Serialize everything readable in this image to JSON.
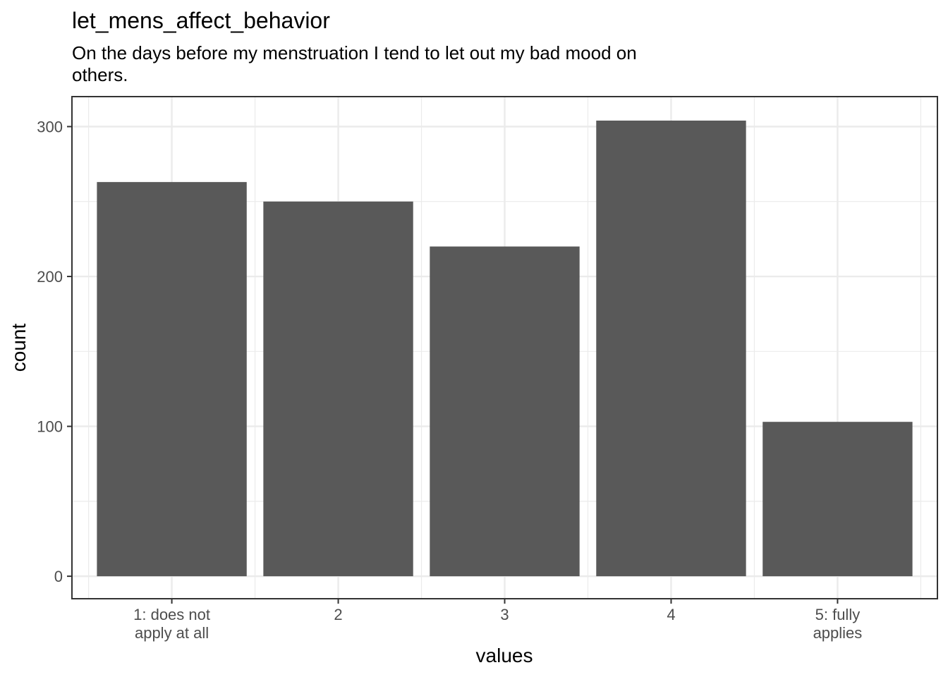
{
  "chart_data": {
    "type": "bar",
    "title": "let_mens_affect_behavior",
    "subtitle_lines": [
      "On the days before my menstruation I tend to let out my bad mood on",
      "others."
    ],
    "xlabel": "values",
    "ylabel": "count",
    "categories": [
      [
        "1: does not",
        "apply at all"
      ],
      [
        "2"
      ],
      [
        "3"
      ],
      [
        "4"
      ],
      [
        "5: fully",
        "applies"
      ]
    ],
    "values": [
      263,
      250,
      220,
      304,
      103
    ],
    "ylim": [
      -15,
      320
    ],
    "yticks": [
      0,
      100,
      200,
      300
    ],
    "yticks_minor": [
      50,
      150,
      250
    ],
    "grid": true,
    "bar_color": "#595959",
    "grid_color": "#ebebeb",
    "panel_border_color": "#333333",
    "tick_color": "#333333"
  }
}
